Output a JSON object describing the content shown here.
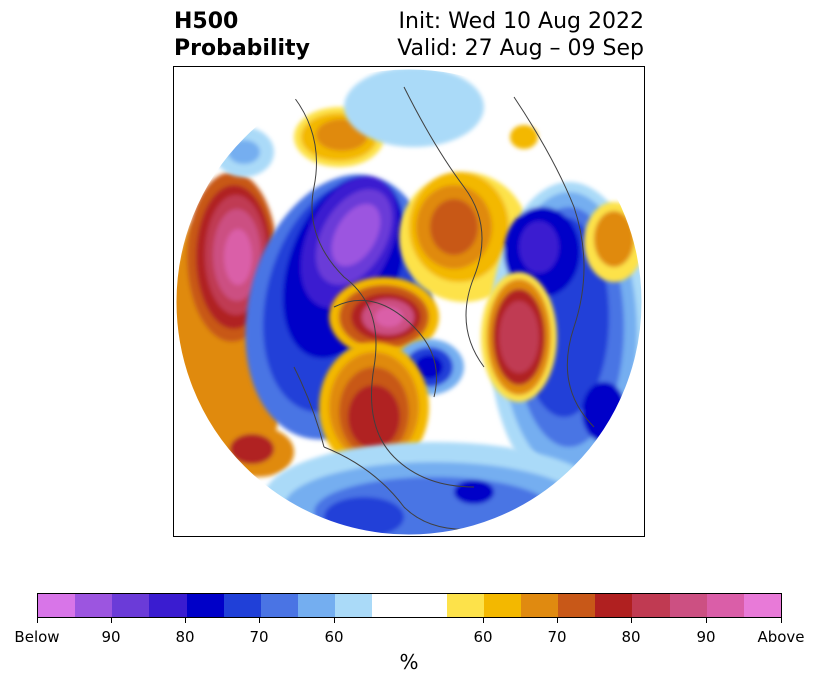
{
  "header": {
    "title_line1": "H500",
    "title_line2": "Probability",
    "init_text": "Init: Wed 10 Aug 2022",
    "valid_text": "Valid: 27 Aug – 09 Sep"
  },
  "colorbar": {
    "units": "%",
    "colors": [
      "#d875e8",
      "#9c55e0",
      "#6b3bd8",
      "#3a1cd0",
      "#0000c8",
      "#2040d8",
      "#4a74e4",
      "#74aef0",
      "#aadaf8",
      "#ffffff",
      "#fde24a",
      "#f3b800",
      "#e08a10",
      "#c85818",
      "#b02020",
      "#c03a52",
      "#cc5082",
      "#da5ea8",
      "#e87ad8"
    ],
    "ticks": [
      "Below",
      "90",
      "80",
      "70",
      "60",
      "60",
      "70",
      "80",
      "90",
      "Above"
    ]
  }
}
